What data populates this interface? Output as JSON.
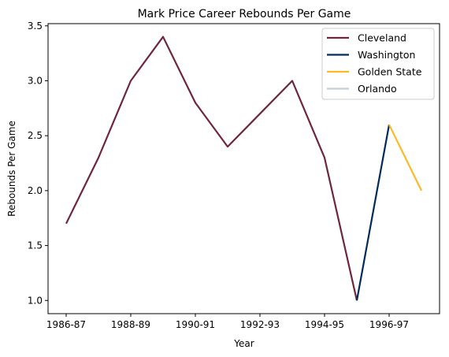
{
  "chart_data": {
    "type": "line",
    "title": "Mark Price Career Rebounds Per Game",
    "xlabel": "Year",
    "ylabel": "Rebounds Per Game",
    "x": [
      "1986-87",
      "1987-88",
      "1988-89",
      "1989-90",
      "1990-91",
      "1991-92",
      "1992-93",
      "1993-94",
      "1994-95",
      "1995-96",
      "1996-97",
      "1997-98"
    ],
    "xticks": [
      "1986-87",
      "1988-89",
      "1990-91",
      "1992-93",
      "1994-95",
      "1996-97"
    ],
    "yticks": [
      "1.0",
      "1.5",
      "2.0",
      "2.5",
      "3.0",
      "3.5"
    ],
    "ylim": [
      0.88,
      3.52
    ],
    "grid": false,
    "legend_position": "top-right",
    "series": [
      {
        "name": "Cleveland",
        "color": "#6f263d",
        "x": [
          "1986-87",
          "1987-88",
          "1988-89",
          "1989-90",
          "1990-91",
          "1991-92",
          "1992-93",
          "1993-94",
          "1994-95",
          "1995-96"
        ],
        "values": [
          1.7,
          2.3,
          3.0,
          3.4,
          2.8,
          2.4,
          2.7,
          3.0,
          2.3,
          1.0
        ]
      },
      {
        "name": "Washington",
        "color": "#002b5c",
        "x": [
          "1995-96",
          "1996-97"
        ],
        "values": [
          1.0,
          2.6
        ]
      },
      {
        "name": "Golden State",
        "color": "#fdb927",
        "x": [
          "1996-97",
          "1997-98"
        ],
        "values": [
          2.6,
          2.0
        ]
      },
      {
        "name": "Orlando",
        "color": "#c4ced4",
        "x": [],
        "values": []
      }
    ]
  }
}
